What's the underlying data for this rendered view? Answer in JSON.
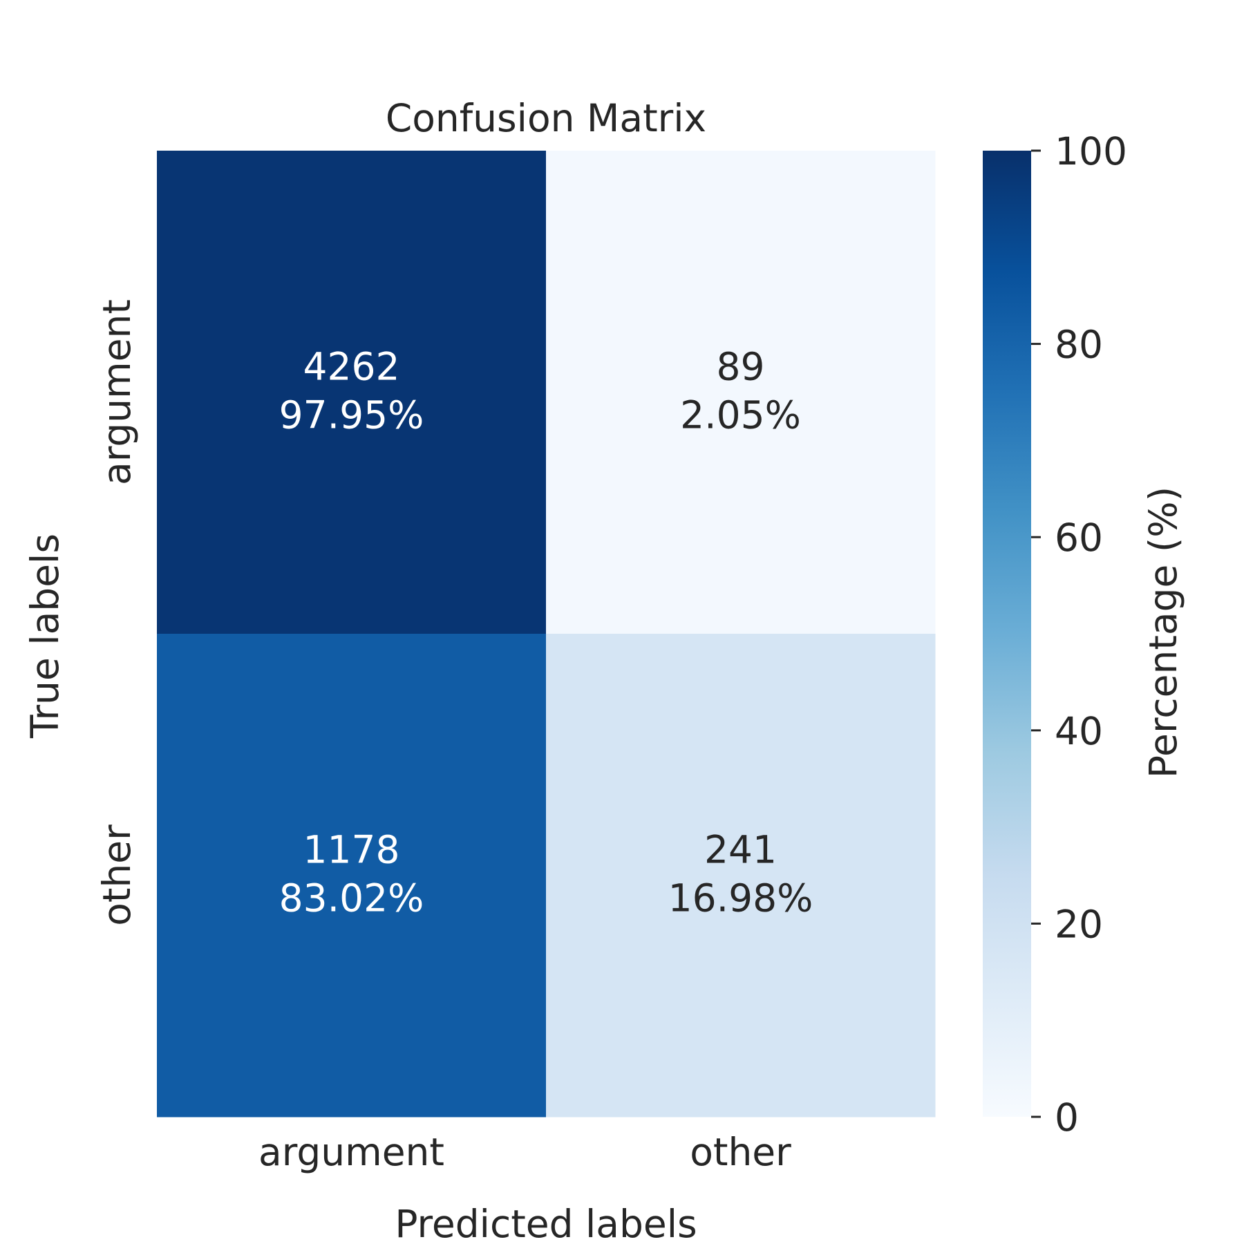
{
  "chart_data": {
    "type": "heatmap",
    "title": "Confusion Matrix",
    "xlabel": "Predicted labels",
    "ylabel": "True labels",
    "x_categories": [
      "argument",
      "other"
    ],
    "y_categories": [
      "argument",
      "other"
    ],
    "counts": [
      [
        4262,
        89
      ],
      [
        1178,
        241
      ]
    ],
    "percentages": [
      [
        97.95,
        2.05
      ],
      [
        83.02,
        16.98
      ]
    ],
    "cell_labels": [
      [
        {
          "count": "4262",
          "percent": "97.95%"
        },
        {
          "count": "89",
          "percent": "2.05%"
        }
      ],
      [
        {
          "count": "1178",
          "percent": "83.02%"
        },
        {
          "count": "241",
          "percent": "16.98%"
        }
      ]
    ],
    "colorbar": {
      "label": "Percentage (%)",
      "range": [
        0,
        100
      ],
      "ticks": [
        "0",
        "20",
        "40",
        "60",
        "80",
        "100"
      ],
      "colormap": "Blues",
      "colors": [
        "#f7fbff",
        "#deebf7",
        "#c6dbef",
        "#9ecae1",
        "#6baed6",
        "#4292c6",
        "#2171b5",
        "#08519c",
        "#08306b"
      ]
    }
  }
}
